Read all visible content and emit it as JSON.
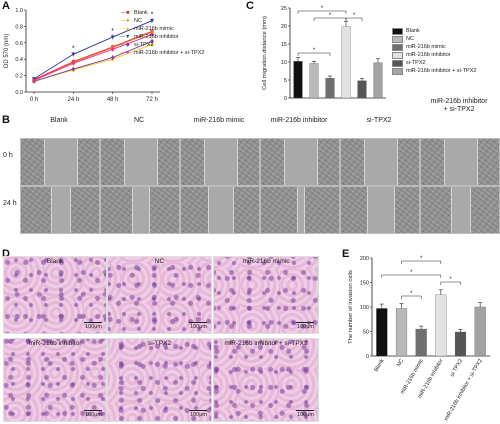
{
  "panels": {
    "a": "A",
    "b": "B",
    "c": "C",
    "d": "D",
    "e": "E"
  },
  "groups": [
    "Blank",
    "NC",
    "miR-216b mimic",
    "miR-216b inhibitor",
    "si-TPX2",
    "miR-216b inhibitor + si-TPX2"
  ],
  "colors": {
    "blank": "#e6262c",
    "nc": "#f07d2a",
    "mimic": "#f2c419",
    "inhibitor": "#2b3a9a",
    "si": "#7b3ba0",
    "combo": "#e8328a"
  },
  "chart_a": {
    "type": "line",
    "ylabel": "OD 570 (nm)",
    "x": [
      "0 h",
      "24 h",
      "48 h",
      "72 h"
    ],
    "yticks": [
      "0.0",
      "0.2",
      "0.4",
      "0.6",
      "0.8",
      "1.0"
    ],
    "ylim": [
      0,
      1.0
    ],
    "series": [
      {
        "name": "Blank",
        "values": [
          0.15,
          0.37,
          0.55,
          0.74
        ],
        "color": "#e6262c",
        "marker": "square"
      },
      {
        "name": "NC",
        "values": [
          0.14,
          0.36,
          0.54,
          0.73
        ],
        "color": "#f07d2a",
        "marker": "circle"
      },
      {
        "name": "miR-216b mimic",
        "values": [
          0.13,
          0.27,
          0.4,
          0.58
        ],
        "color": "#f2c419",
        "marker": "triangle"
      },
      {
        "name": "miR-216b inhibitor",
        "values": [
          0.16,
          0.46,
          0.67,
          0.87
        ],
        "color": "#2b3a9a",
        "marker": "triangle-down"
      },
      {
        "name": "si-TPX2",
        "values": [
          0.13,
          0.28,
          0.42,
          0.62
        ],
        "color": "#7b3ba0",
        "marker": "diamond"
      },
      {
        "name": "miR-216b inhibitor + si-TPX2",
        "values": [
          0.14,
          0.35,
          0.52,
          0.7
        ],
        "color": "#e8328a",
        "marker": "circle"
      }
    ],
    "stars": [
      "*",
      "*",
      "*"
    ]
  },
  "chart_c": {
    "type": "bar",
    "ylabel": "Cell migration distance (mm)",
    "yticks": [
      "0",
      "5",
      "10",
      "15",
      "20",
      "25"
    ],
    "ylim": [
      0,
      25
    ],
    "categories": [
      "Blank",
      "NC",
      "miR-216b mimic",
      "miR-216b inhibitor",
      "si-TPX2",
      "miR-216b inhibitor + si-TPX2"
    ],
    "values": [
      10.2,
      9.6,
      5.5,
      19.8,
      4.8,
      9.8
    ],
    "errors": [
      1.0,
      0.6,
      0.6,
      1.4,
      0.6,
      1.1
    ],
    "colors": [
      "#111111",
      "#b9b9b9",
      "#6f6f6f",
      "#e2e2e2",
      "#555555",
      "#a3a3a3"
    ],
    "star": "*"
  },
  "chart_e": {
    "type": "bar",
    "ylabel": "The number of invasion cells",
    "yticks": [
      "0",
      "50",
      "100",
      "150",
      "200"
    ],
    "ylim": [
      0,
      200
    ],
    "categories": [
      "Blank",
      "NC",
      "miR-216b mimic",
      "miR-216b inhibitor",
      "si-TPX2",
      "miR-216b inhibitor + si-TPX2"
    ],
    "values": [
      97,
      97,
      55,
      125,
      49,
      100
    ],
    "errors": [
      9,
      10,
      6,
      10,
      5,
      9
    ],
    "colors": [
      "#111111",
      "#b9b9b9",
      "#6f6f6f",
      "#e2e2e2",
      "#555555",
      "#a3a3a3"
    ],
    "star": "*"
  },
  "wound": {
    "columns": [
      "Blank",
      "NC",
      "miR-216b mimic",
      "miR-216b inhibitor",
      "si-TPX2",
      "miR-216b inhibitor\n+ si-TPX2"
    ],
    "rows": [
      "0 h",
      "24 h"
    ]
  },
  "stain": {
    "labels": [
      "Blank",
      "NC",
      "miR-216b mimic",
      "miR-216b inhibitor",
      "si-TPX2",
      "miR-216b inhibitor + si-TPX2"
    ],
    "scale": "100μm"
  }
}
